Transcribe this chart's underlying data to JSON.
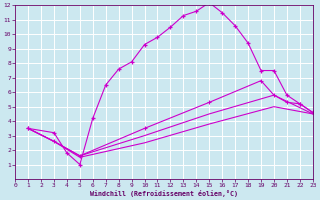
{
  "xlabel": "Windchill (Refroidissement éolien,°C)",
  "bg_color": "#cce8f0",
  "line_color": "#cc00cc",
  "grid_color": "#ffffff",
  "xlim": [
    0,
    23
  ],
  "ylim": [
    0,
    12
  ],
  "xticks": [
    0,
    1,
    2,
    3,
    4,
    5,
    6,
    7,
    8,
    9,
    10,
    11,
    12,
    13,
    14,
    15,
    16,
    17,
    18,
    19,
    20,
    21,
    22,
    23
  ],
  "yticks": [
    1,
    2,
    3,
    4,
    5,
    6,
    7,
    8,
    9,
    10,
    11,
    12
  ],
  "line1_x": [
    1,
    3,
    4,
    5,
    6,
    7,
    8,
    9,
    10,
    11,
    12,
    13,
    14,
    15,
    16,
    17,
    18,
    19,
    20,
    21,
    22,
    23
  ],
  "line1_y": [
    3.5,
    3.2,
    1.8,
    1.0,
    4.2,
    6.5,
    7.6,
    8.1,
    9.3,
    9.8,
    10.5,
    11.3,
    11.6,
    12.2,
    11.5,
    10.6,
    9.4,
    7.5,
    7.5,
    5.8,
    5.2,
    4.6
  ],
  "line2_x": [
    1,
    3,
    5,
    10,
    15,
    19,
    20,
    21,
    22,
    23
  ],
  "line2_y": [
    3.5,
    2.6,
    1.6,
    3.5,
    5.3,
    6.8,
    5.8,
    5.3,
    5.2,
    4.6
  ],
  "line3_x": [
    1,
    3,
    5,
    10,
    15,
    20,
    23
  ],
  "line3_y": [
    3.5,
    2.6,
    1.6,
    3.0,
    4.5,
    5.8,
    4.5
  ],
  "line4_x": [
    1,
    3,
    5,
    10,
    15,
    20,
    23
  ],
  "line4_y": [
    3.5,
    2.6,
    1.5,
    2.5,
    3.8,
    5.0,
    4.5
  ]
}
